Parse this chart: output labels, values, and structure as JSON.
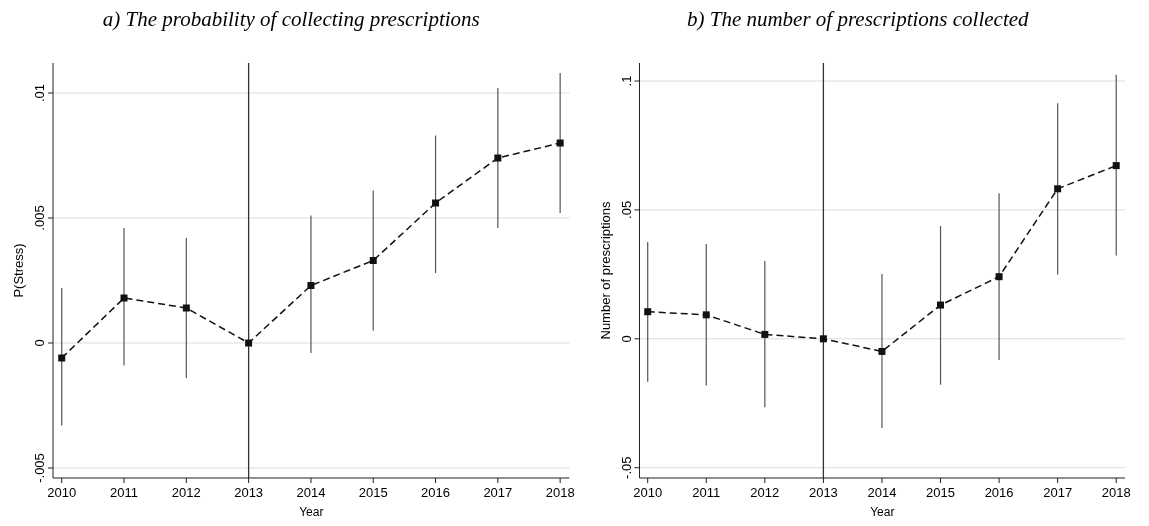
{
  "chart_data": [
    {
      "type": "line",
      "title": "a)   The probability of collecting prescriptions",
      "xlabel": "Year",
      "ylabel": "P(Stress)",
      "x": [
        2010,
        2011,
        2012,
        2013,
        2014,
        2015,
        2016,
        2017,
        2018
      ],
      "series": [
        {
          "color": "#111111",
          "values": [
            -0.0006,
            0.0018,
            0.0014,
            0,
            0.0023,
            0.0033,
            0.0056,
            0.0074,
            0.008
          ],
          "errors": [
            [
              -0.0033,
              0.0022
            ],
            [
              -0.0009,
              0.0046
            ],
            [
              -0.0014,
              0.0042
            ],
            null,
            [
              -0.0004,
              0.0051
            ],
            [
              0.0005,
              0.0061
            ],
            [
              0.0028,
              0.0083
            ],
            [
              0.0046,
              0.0102
            ],
            [
              0.0052,
              0.0108
            ]
          ]
        }
      ],
      "xlim": [
        2009.86,
        2018.15
      ],
      "ylim": [
        -0.0054,
        0.0112
      ],
      "xticks": [
        2010,
        2011,
        2012,
        2013,
        2014,
        2015,
        2016,
        2017,
        2018
      ],
      "yticks": [
        {
          "value": -0.005,
          "label": "-.005"
        },
        0,
        {
          "value": 0.005,
          "label": ".005"
        },
        {
          "value": 0.01,
          "label": ".01"
        }
      ],
      "ref_lines": [
        {
          "axis": "x",
          "value": 2013,
          "color": "#333333"
        }
      ],
      "grid": "y",
      "marker": "square",
      "line_style": "dashed"
    },
    {
      "type": "line",
      "title": "b) The number of prescriptions collected",
      "xlabel": "Year",
      "ylabel": "Number of prescriptions",
      "x": [
        2010,
        2011,
        2012,
        2013,
        2014,
        2015,
        2016,
        2017,
        2018
      ],
      "series": [
        {
          "color": "#111111",
          "values": [
            0.0105,
            0.0093,
            0.0017,
            0,
            -0.0049,
            0.0131,
            0.0241,
            0.0582,
            0.0672
          ],
          "errors": [
            [
              -0.0167,
              0.0376
            ],
            [
              -0.0181,
              0.0368
            ],
            [
              -0.0266,
              0.0302
            ],
            null,
            [
              -0.0346,
              0.0251
            ],
            [
              -0.0178,
              0.0438
            ],
            [
              -0.0082,
              0.0565
            ],
            [
              0.0249,
              0.0914
            ],
            [
              0.0323,
              0.1024
            ]
          ]
        }
      ],
      "xlim": [
        2009.86,
        2018.15
      ],
      "ylim": [
        -0.054,
        0.107
      ],
      "xticks": [
        2010,
        2011,
        2012,
        2013,
        2014,
        2015,
        2016,
        2017,
        2018
      ],
      "yticks": [
        {
          "value": -0.05,
          "label": "-.05"
        },
        0,
        {
          "value": 0.05,
          "label": ".05"
        },
        {
          "value": 0.1,
          "label": ".1"
        }
      ],
      "ref_lines": [
        {
          "axis": "x",
          "value": 2013,
          "color": "#333333"
        }
      ],
      "grid": "y",
      "marker": "square",
      "line_style": "dashed"
    }
  ]
}
